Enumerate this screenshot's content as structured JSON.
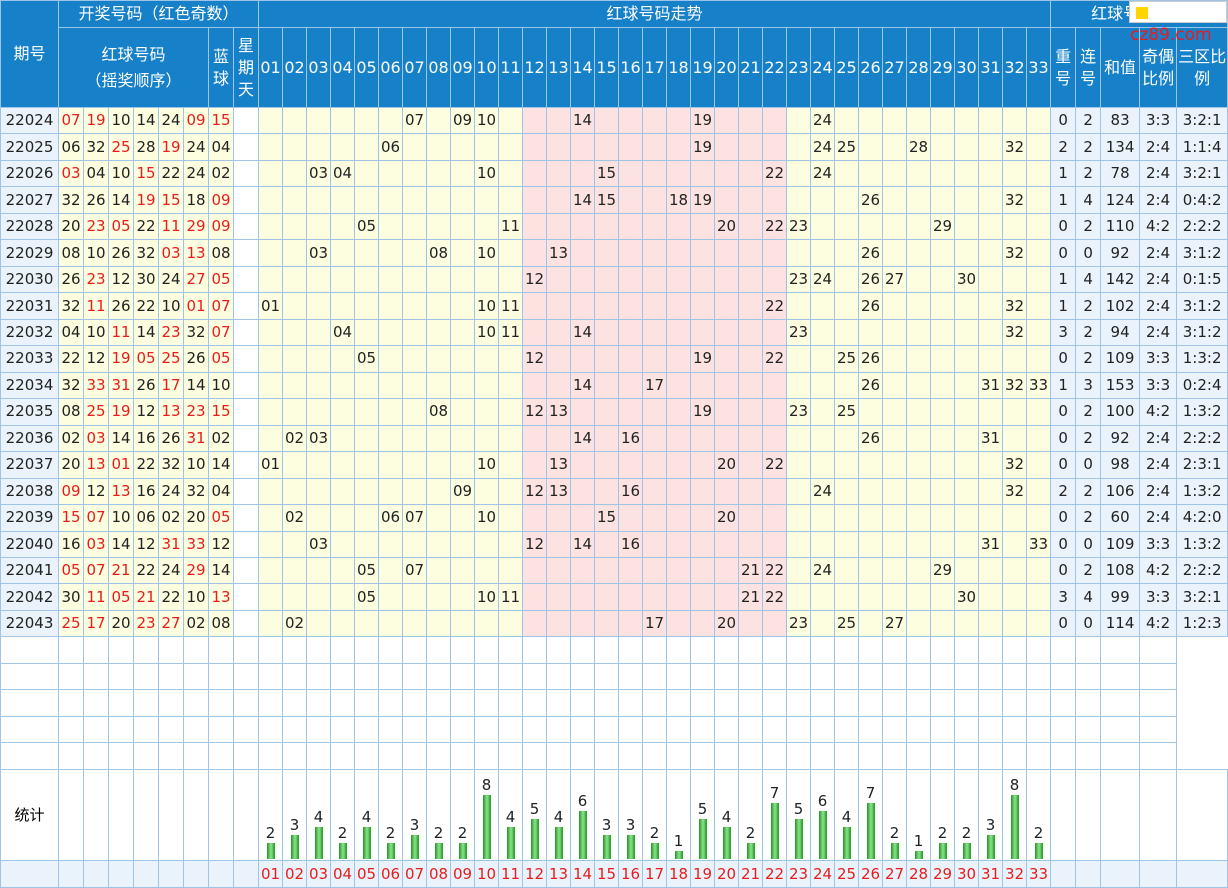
{
  "header": {
    "issue": "期号",
    "draw_group": "开奖号码（红色奇数）",
    "trend_group": "红球号码走势",
    "analysis_group": "红球号码分析",
    "red_label": "红球号码",
    "red_sub": "（摇奖顺序）",
    "blue_label": "蓝球",
    "weekday_label": "星期天",
    "col_nums": [
      "01",
      "02",
      "03",
      "04",
      "05",
      "06",
      "07",
      "08",
      "09",
      "10",
      "11",
      "12",
      "13",
      "14",
      "15",
      "16",
      "17",
      "18",
      "19",
      "20",
      "21",
      "22",
      "23",
      "24",
      "25",
      "26",
      "27",
      "28",
      "29",
      "30",
      "31",
      "32",
      "33"
    ],
    "repeat": "重号",
    "consec": "连号",
    "sum": "和值",
    "oddeven": "奇偶比例",
    "zone": "三区比例"
  },
  "logo": "cz89.com",
  "stats_label": "统计",
  "rows": [
    {
      "period": "22024",
      "reds": [
        "07",
        "19",
        "10",
        "14",
        "24",
        "09"
      ],
      "blue": "15",
      "repeat": "0",
      "consec": "2",
      "sum": "83",
      "oe": "3:3",
      "zone": "3:2:1"
    },
    {
      "period": "22025",
      "reds": [
        "06",
        "32",
        "25",
        "28",
        "19",
        "24"
      ],
      "blue": "04",
      "repeat": "2",
      "consec": "2",
      "sum": "134",
      "oe": "2:4",
      "zone": "1:1:4"
    },
    {
      "period": "22026",
      "reds": [
        "03",
        "04",
        "10",
        "15",
        "22",
        "24"
      ],
      "blue": "02",
      "repeat": "1",
      "consec": "2",
      "sum": "78",
      "oe": "2:4",
      "zone": "3:2:1"
    },
    {
      "period": "22027",
      "reds": [
        "32",
        "26",
        "14",
        "19",
        "15",
        "18"
      ],
      "blue": "09",
      "repeat": "1",
      "consec": "4",
      "sum": "124",
      "oe": "2:4",
      "zone": "0:4:2"
    },
    {
      "period": "22028",
      "reds": [
        "20",
        "23",
        "05",
        "22",
        "11",
        "29"
      ],
      "blue": "09",
      "repeat": "0",
      "consec": "2",
      "sum": "110",
      "oe": "4:2",
      "zone": "2:2:2"
    },
    {
      "period": "22029",
      "reds": [
        "08",
        "10",
        "26",
        "32",
        "03",
        "13"
      ],
      "blue": "08",
      "repeat": "0",
      "consec": "0",
      "sum": "92",
      "oe": "2:4",
      "zone": "3:1:2"
    },
    {
      "period": "22030",
      "reds": [
        "26",
        "23",
        "12",
        "30",
        "24",
        "27"
      ],
      "blue": "05",
      "repeat": "1",
      "consec": "4",
      "sum": "142",
      "oe": "2:4",
      "zone": "0:1:5"
    },
    {
      "period": "22031",
      "reds": [
        "32",
        "11",
        "26",
        "22",
        "10",
        "01"
      ],
      "blue": "07",
      "repeat": "1",
      "consec": "2",
      "sum": "102",
      "oe": "2:4",
      "zone": "3:1:2"
    },
    {
      "period": "22032",
      "reds": [
        "04",
        "10",
        "11",
        "14",
        "23",
        "32"
      ],
      "blue": "07",
      "repeat": "3",
      "consec": "2",
      "sum": "94",
      "oe": "2:4",
      "zone": "3:1:2"
    },
    {
      "period": "22033",
      "reds": [
        "22",
        "12",
        "19",
        "05",
        "25",
        "26"
      ],
      "blue": "05",
      "repeat": "0",
      "consec": "2",
      "sum": "109",
      "oe": "3:3",
      "zone": "1:3:2"
    },
    {
      "period": "22034",
      "reds": [
        "32",
        "33",
        "31",
        "26",
        "17",
        "14"
      ],
      "blue": "10",
      "repeat": "1",
      "consec": "3",
      "sum": "153",
      "oe": "3:3",
      "zone": "0:2:4"
    },
    {
      "period": "22035",
      "reds": [
        "08",
        "25",
        "19",
        "12",
        "13",
        "23"
      ],
      "blue": "15",
      "repeat": "0",
      "consec": "2",
      "sum": "100",
      "oe": "4:2",
      "zone": "1:3:2"
    },
    {
      "period": "22036",
      "reds": [
        "02",
        "03",
        "14",
        "16",
        "26",
        "31"
      ],
      "blue": "02",
      "repeat": "0",
      "consec": "2",
      "sum": "92",
      "oe": "2:4",
      "zone": "2:2:2"
    },
    {
      "period": "22037",
      "reds": [
        "20",
        "13",
        "01",
        "22",
        "32",
        "10"
      ],
      "blue": "14",
      "repeat": "0",
      "consec": "0",
      "sum": "98",
      "oe": "2:4",
      "zone": "2:3:1"
    },
    {
      "period": "22038",
      "reds": [
        "09",
        "12",
        "13",
        "16",
        "24",
        "32"
      ],
      "blue": "04",
      "repeat": "2",
      "consec": "2",
      "sum": "106",
      "oe": "2:4",
      "zone": "1:3:2"
    },
    {
      "period": "22039",
      "reds": [
        "15",
        "07",
        "10",
        "06",
        "02",
        "20"
      ],
      "blue": "05",
      "repeat": "0",
      "consec": "2",
      "sum": "60",
      "oe": "2:4",
      "zone": "4:2:0"
    },
    {
      "period": "22040",
      "reds": [
        "16",
        "03",
        "14",
        "12",
        "31",
        "33"
      ],
      "blue": "12",
      "repeat": "0",
      "consec": "0",
      "sum": "109",
      "oe": "3:3",
      "zone": "1:3:2"
    },
    {
      "period": "22041",
      "reds": [
        "05",
        "07",
        "21",
        "22",
        "24",
        "29"
      ],
      "blue": "14",
      "repeat": "0",
      "consec": "2",
      "sum": "108",
      "oe": "4:2",
      "zone": "2:2:2"
    },
    {
      "period": "22042",
      "reds": [
        "30",
        "11",
        "05",
        "21",
        "22",
        "10"
      ],
      "blue": "13",
      "repeat": "3",
      "consec": "4",
      "sum": "99",
      "oe": "3:3",
      "zone": "3:2:1"
    },
    {
      "period": "22043",
      "reds": [
        "25",
        "17",
        "20",
        "23",
        "27",
        "02"
      ],
      "blue": "08",
      "repeat": "0",
      "consec": "0",
      "sum": "114",
      "oe": "4:2",
      "zone": "1:2:3"
    }
  ],
  "counts": [
    2,
    3,
    4,
    2,
    4,
    2,
    3,
    2,
    2,
    8,
    4,
    5,
    4,
    6,
    3,
    3,
    2,
    1,
    5,
    4,
    2,
    7,
    5,
    6,
    4,
    7,
    2,
    1,
    2,
    2,
    3,
    8,
    2
  ],
  "colors": {
    "header": "#1680c8",
    "odd": "#e81c1c",
    "trend_bg": "#fdfde0",
    "trend_pink": "#fde2e2",
    "bar": "#2fa82f"
  }
}
